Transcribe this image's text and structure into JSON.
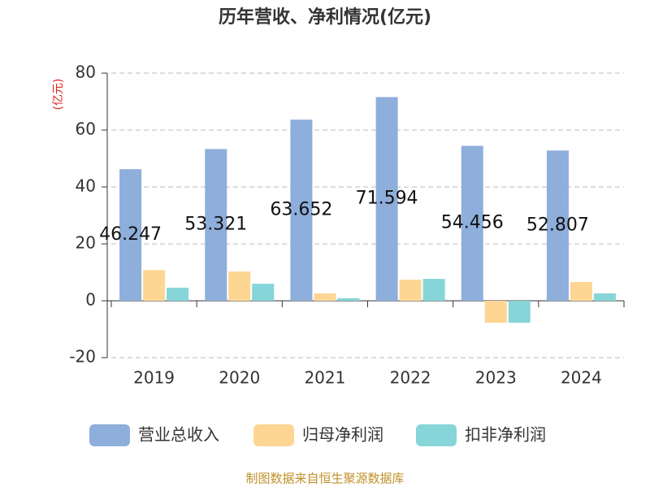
{
  "chart_data": {
    "type": "bar",
    "title": "历年营收、净利情况(亿元)",
    "y_label": "(亿元)",
    "y_label_color": "#e02020",
    "source": "制图数据来自恒生聚源数据库",
    "source_color": "#c0902a",
    "categories": [
      "2019",
      "2020",
      "2021",
      "2022",
      "2023",
      "2024"
    ],
    "series": [
      {
        "name": "营业总收入",
        "color": "#8eaedb",
        "values": [
          46.247,
          53.321,
          63.652,
          71.594,
          54.456,
          52.807
        ],
        "show_labels": true
      },
      {
        "name": "归母净利润",
        "color": "#fdd694",
        "values": [
          10.8,
          10.3,
          2.6,
          7.4,
          -7.7,
          6.6
        ]
      },
      {
        "name": "扣非净利润",
        "color": "#86d5d8",
        "values": [
          4.6,
          6.0,
          0.9,
          7.7,
          -7.7,
          2.6
        ]
      }
    ],
    "ylim": [
      -20,
      80
    ],
    "yticks": [
      -20,
      0,
      20,
      40,
      60,
      80
    ],
    "grid": true,
    "legend": "bottom"
  }
}
